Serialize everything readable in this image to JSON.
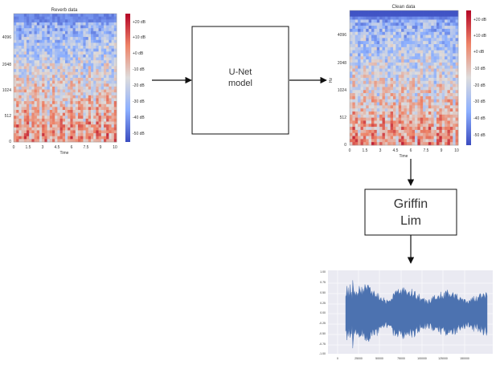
{
  "spectrogram_in": {
    "title": "Reverb data",
    "xlabel": "Time",
    "ylabel": "",
    "y_ticks": [
      "4096",
      "2048",
      "1024",
      "512",
      "0"
    ],
    "x_ticks": [
      "0",
      "1.5",
      "3",
      "4.5",
      "6",
      "7.5",
      "9",
      "10"
    ],
    "colorbar_ticks": [
      "+20 dB",
      "+10 dB",
      "+0 dB",
      "-10 dB",
      "-20 dB",
      "-30 dB",
      "-40 dB",
      "-50 dB"
    ]
  },
  "spectrogram_out": {
    "title": "Clean data",
    "xlabel": "Time",
    "ylabel": "Hz",
    "y_ticks": [
      "4096",
      "2048",
      "1024",
      "512",
      "0"
    ],
    "x_ticks": [
      "0",
      "1.5",
      "3",
      "4.5",
      "6",
      "7.5",
      "9",
      "10"
    ],
    "colorbar_ticks": [
      "+20 dB",
      "+10 dB",
      "+0 dB",
      "-10 dB",
      "-20 dB",
      "-30 dB",
      "-40 dB",
      "-50 dB"
    ]
  },
  "unet_box": {
    "line1": "U-Net",
    "line2": "model"
  },
  "griffin_box": {
    "line1": "Griffin",
    "line2": "Lim"
  },
  "waveform": {
    "y_ticks": [
      "1.00",
      "0.75",
      "0.50",
      "0.25",
      "0.00",
      "-0.25",
      "-0.50",
      "-0.75",
      "-1.00"
    ],
    "x_ticks": [
      "0",
      "25000",
      "50000",
      "75000",
      "100000",
      "125000",
      "150000"
    ],
    "color": "#4c72b0"
  },
  "colors": {
    "hot": "#b40426",
    "cold": "#3b4cc0",
    "mid": "#f2cbb7"
  }
}
